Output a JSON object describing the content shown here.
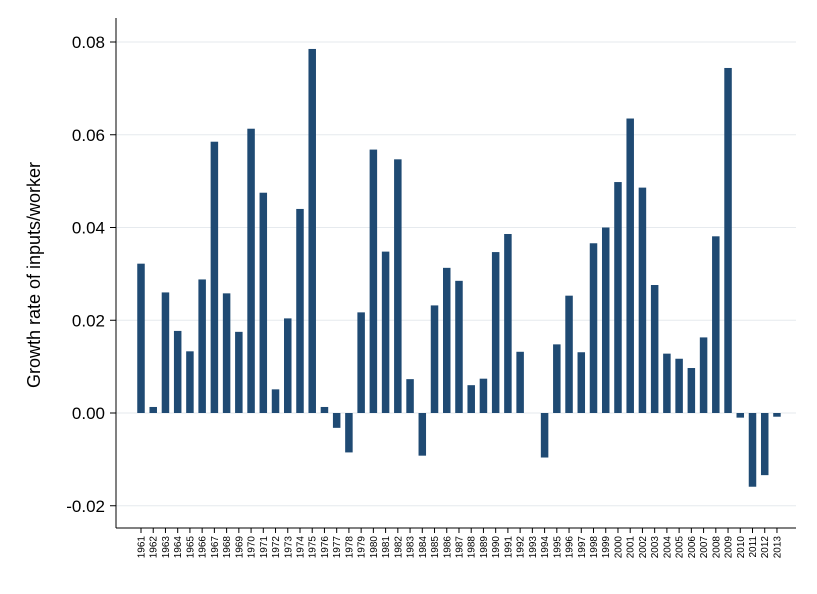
{
  "chart_data": {
    "type": "bar",
    "title": "",
    "xlabel": "",
    "ylabel": "Growth rate of inputs/worker",
    "ylim": [
      -0.022,
      0.083
    ],
    "yticks": [
      -0.02,
      0.0,
      0.02,
      0.04,
      0.06,
      0.08
    ],
    "ytick_labels": [
      "-0.02",
      "0.00",
      "0.02",
      "0.04",
      "0.06",
      "0.08"
    ],
    "grid": true,
    "bar_color": "#1f4a73",
    "categories": [
      "1961",
      "1962",
      "1963",
      "1964",
      "1965",
      "1966",
      "1967",
      "1968",
      "1969",
      "1970",
      "1971",
      "1972",
      "1973",
      "1974",
      "1975",
      "1976",
      "1977",
      "1978",
      "1979",
      "1980",
      "1981",
      "1982",
      "1983",
      "1984",
      "1985",
      "1986",
      "1987",
      "1988",
      "1989",
      "1990",
      "1991",
      "1992",
      "1993",
      "1994",
      "1995",
      "1996",
      "1997",
      "1998",
      "1999",
      "2000",
      "2001",
      "2002",
      "2003",
      "2004",
      "2005",
      "2006",
      "2007",
      "2008",
      "2009",
      "2010",
      "2011",
      "2012",
      "2013"
    ],
    "values": [
      0.0322,
      0.0013,
      0.026,
      0.0177,
      0.0133,
      0.0288,
      0.0585,
      0.0258,
      0.0175,
      0.0613,
      0.0475,
      0.0051,
      0.0204,
      0.044,
      0.0785,
      0.0013,
      -0.0032,
      -0.0085,
      0.0217,
      0.0568,
      0.0348,
      0.0547,
      0.0073,
      -0.0092,
      0.0232,
      0.0313,
      0.0285,
      0.006,
      0.0074,
      0.0347,
      0.0386,
      0.0132,
      0.0,
      -0.0096,
      0.0148,
      0.0253,
      0.0131,
      0.0366,
      0.04,
      0.0498,
      0.0635,
      0.0486,
      0.0276,
      0.0128,
      0.0117,
      0.0097,
      0.0163,
      0.0381,
      0.0744,
      -0.001,
      -0.0159,
      -0.0134,
      -0.0008
    ]
  }
}
